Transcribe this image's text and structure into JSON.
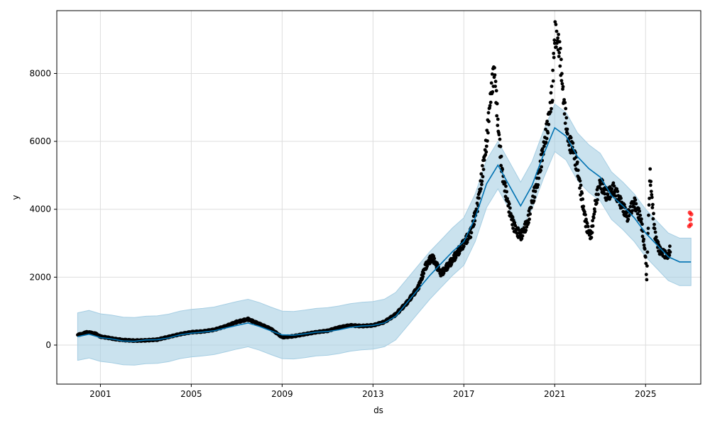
{
  "chart_data": {
    "type": "scatter",
    "title": "",
    "xlabel": "ds",
    "ylabel": "y",
    "xlim": [
      1999.08,
      2027.43
    ],
    "ylim": [
      -1150,
      9850
    ],
    "x_ticks": [
      2001,
      2005,
      2009,
      2013,
      2017,
      2021,
      2025
    ],
    "x_tick_labels": [
      "2001",
      "2005",
      "2009",
      "2013",
      "2017",
      "2021",
      "2025"
    ],
    "y_ticks": [
      0,
      2000,
      4000,
      6000,
      8000
    ],
    "y_tick_labels": [
      "0",
      "2000",
      "4000",
      "6000",
      "8000"
    ],
    "grid": true,
    "colors": {
      "observed": "#000000",
      "forecast_line": "#0072B2",
      "uncertainty_band": "#A6CEE3",
      "holdout": "#FF0000"
    },
    "series": [
      {
        "kind": "observed_points",
        "points": [
          [
            2000.0,
            300
          ],
          [
            2000.2,
            330
          ],
          [
            2000.4,
            380
          ],
          [
            2000.6,
            360
          ],
          [
            2000.8,
            330
          ],
          [
            2001.0,
            250
          ],
          [
            2001.3,
            220
          ],
          [
            2001.6,
            180
          ],
          [
            2002.0,
            150
          ],
          [
            2002.5,
            130
          ],
          [
            2003.0,
            140
          ],
          [
            2003.5,
            160
          ],
          [
            2004.0,
            240
          ],
          [
            2004.5,
            320
          ],
          [
            2005.0,
            380
          ],
          [
            2005.5,
            400
          ],
          [
            2006.0,
            450
          ],
          [
            2006.5,
            550
          ],
          [
            2007.0,
            680
          ],
          [
            2007.5,
            760
          ],
          [
            2008.0,
            620
          ],
          [
            2008.5,
            480
          ],
          [
            2009.0,
            230
          ],
          [
            2009.5,
            260
          ],
          [
            2010.0,
            320
          ],
          [
            2010.5,
            380
          ],
          [
            2011.0,
            420
          ],
          [
            2011.5,
            520
          ],
          [
            2012.0,
            580
          ],
          [
            2012.5,
            560
          ],
          [
            2013.0,
            580
          ],
          [
            2013.5,
            680
          ],
          [
            2014.0,
            900
          ],
          [
            2014.5,
            1250
          ],
          [
            2015.0,
            1700
          ],
          [
            2015.3,
            2300
          ],
          [
            2015.6,
            2600
          ],
          [
            2016.0,
            2100
          ],
          [
            2016.5,
            2500
          ],
          [
            2017.0,
            3000
          ],
          [
            2017.3,
            3300
          ],
          [
            2017.6,
            4100
          ],
          [
            2017.8,
            5000
          ],
          [
            2018.0,
            6000
          ],
          [
            2018.2,
            7500
          ],
          [
            2018.35,
            8100
          ],
          [
            2018.5,
            6500
          ],
          [
            2018.7,
            5000
          ],
          [
            2019.0,
            4000
          ],
          [
            2019.2,
            3500
          ],
          [
            2019.5,
            3200
          ],
          [
            2019.8,
            3600
          ],
          [
            2020.0,
            4200
          ],
          [
            2020.3,
            5000
          ],
          [
            2020.5,
            5800
          ],
          [
            2020.7,
            6500
          ],
          [
            2020.9,
            7500
          ],
          [
            2021.0,
            9200
          ],
          [
            2021.2,
            8800
          ],
          [
            2021.4,
            7200
          ],
          [
            2021.6,
            6000
          ],
          [
            2021.8,
            5800
          ],
          [
            2022.0,
            5200
          ],
          [
            2022.2,
            4300
          ],
          [
            2022.4,
            3500
          ],
          [
            2022.6,
            3200
          ],
          [
            2022.8,
            4200
          ],
          [
            2023.0,
            4800
          ],
          [
            2023.3,
            4400
          ],
          [
            2023.6,
            4600
          ],
          [
            2023.9,
            4200
          ],
          [
            2024.2,
            3800
          ],
          [
            2024.5,
            4200
          ],
          [
            2024.8,
            3700
          ],
          [
            2025.0,
            2600
          ],
          [
            2025.05,
            1900
          ],
          [
            2025.1,
            3200
          ],
          [
            2025.2,
            5000
          ],
          [
            2025.4,
            3300
          ],
          [
            2025.6,
            2800
          ],
          [
            2025.8,
            2700
          ],
          [
            2026.0,
            2600
          ],
          [
            2026.1,
            2900
          ]
        ]
      },
      {
        "kind": "forecast_line",
        "points": [
          [
            2000.0,
            250
          ],
          [
            2000.5,
            320
          ],
          [
            2001.0,
            220
          ],
          [
            2001.5,
            180
          ],
          [
            2002.0,
            120
          ],
          [
            2002.5,
            110
          ],
          [
            2003.0,
            150
          ],
          [
            2003.5,
            160
          ],
          [
            2004.0,
            210
          ],
          [
            2004.5,
            300
          ],
          [
            2005.0,
            350
          ],
          [
            2005.5,
            380
          ],
          [
            2006.0,
            420
          ],
          [
            2006.5,
            500
          ],
          [
            2007.0,
            580
          ],
          [
            2007.5,
            650
          ],
          [
            2008.0,
            550
          ],
          [
            2008.5,
            420
          ],
          [
            2009.0,
            300
          ],
          [
            2009.5,
            290
          ],
          [
            2010.0,
            330
          ],
          [
            2010.5,
            380
          ],
          [
            2011.0,
            400
          ],
          [
            2011.5,
            450
          ],
          [
            2012.0,
            520
          ],
          [
            2012.5,
            560
          ],
          [
            2013.0,
            580
          ],
          [
            2013.5,
            650
          ],
          [
            2014.0,
            850
          ],
          [
            2014.5,
            1250
          ],
          [
            2015.0,
            1650
          ],
          [
            2015.5,
            2050
          ],
          [
            2016.0,
            2400
          ],
          [
            2016.5,
            2750
          ],
          [
            2017.0,
            3050
          ],
          [
            2017.5,
            3750
          ],
          [
            2018.0,
            4750
          ],
          [
            2018.5,
            5300
          ],
          [
            2019.0,
            4700
          ],
          [
            2019.5,
            4100
          ],
          [
            2020.0,
            4700
          ],
          [
            2020.5,
            5600
          ],
          [
            2021.0,
            6400
          ],
          [
            2021.5,
            6150
          ],
          [
            2022.0,
            5550
          ],
          [
            2022.5,
            5200
          ],
          [
            2023.0,
            4950
          ],
          [
            2023.5,
            4400
          ],
          [
            2024.0,
            4100
          ],
          [
            2024.5,
            3750
          ],
          [
            2025.0,
            3300
          ],
          [
            2025.5,
            2950
          ],
          [
            2026.0,
            2600
          ],
          [
            2026.5,
            2450
          ],
          [
            2027.0,
            2450
          ]
        ]
      },
      {
        "kind": "uncertainty_band",
        "half_width": 700
      },
      {
        "kind": "holdout_points",
        "points": [
          [
            2026.92,
            3500
          ],
          [
            2026.95,
            3900
          ],
          [
            2026.97,
            3700
          ],
          [
            2026.99,
            3550
          ],
          [
            2027.01,
            3850
          ]
        ]
      }
    ]
  }
}
